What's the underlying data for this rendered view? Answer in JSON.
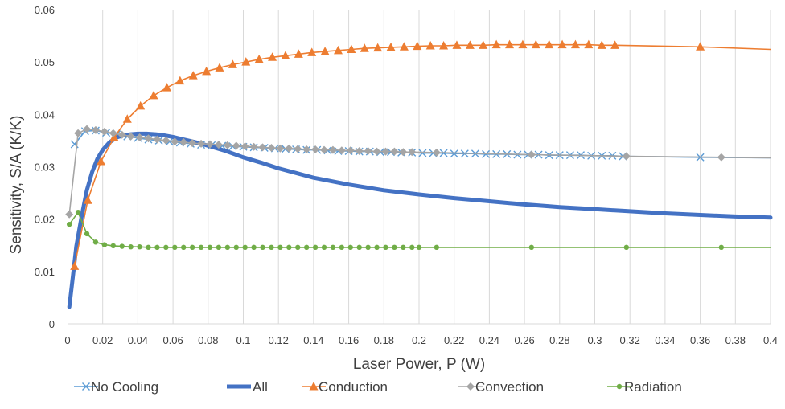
{
  "chart_data": {
    "type": "line",
    "title": "",
    "xlabel": "Laser Power, P (W)",
    "ylabel": "Sensitivity, S/A (K/K)",
    "xlim": [
      0,
      0.4
    ],
    "ylim": [
      0,
      0.06
    ],
    "x_ticks": [
      "0",
      "0.02",
      "0.04",
      "0.06",
      "0.08",
      "0.1",
      "0.12",
      "0.14",
      "0.16",
      "0.18",
      "0.2",
      "0.22",
      "0.24",
      "0.26",
      "0.28",
      "0.3",
      "0.32",
      "0.34",
      "0.36",
      "0.38",
      "0.4"
    ],
    "y_ticks": [
      "0",
      "0.01",
      "0.02",
      "0.03",
      "0.04",
      "0.05",
      "0.06"
    ],
    "vertical_gridlines": true,
    "horizontal_gridlines": false,
    "legend_position": "bottom",
    "series": [
      {
        "name": "No Cooling",
        "color": "#5B9BD5",
        "marker": "x",
        "line_width": "thin",
        "x": [
          0.004,
          0.01,
          0.016,
          0.022,
          0.028,
          0.034,
          0.04,
          0.046,
          0.052,
          0.058,
          0.064,
          0.07,
          0.076,
          0.082,
          0.088,
          0.094,
          0.1,
          0.106,
          0.112,
          0.118,
          0.124,
          0.13,
          0.136,
          0.142,
          0.148,
          0.154,
          0.16,
          0.166,
          0.172,
          0.178,
          0.184,
          0.19,
          0.196,
          0.202,
          0.208,
          0.214,
          0.22,
          0.226,
          0.232,
          0.238,
          0.244,
          0.25,
          0.256,
          0.262,
          0.268,
          0.274,
          0.28,
          0.286,
          0.292,
          0.298,
          0.304,
          0.31,
          0.316,
          0.36,
          0.4
        ],
        "y": [
          0.0343,
          0.0368,
          0.0369,
          0.0365,
          0.0362,
          0.0358,
          0.0355,
          0.0352,
          0.035,
          0.0348,
          0.0346,
          0.0344,
          0.0342,
          0.0341,
          0.034,
          0.0339,
          0.0338,
          0.0337,
          0.0336,
          0.0335,
          0.0334,
          0.0333,
          0.0332,
          0.0332,
          0.0331,
          0.033,
          0.033,
          0.0329,
          0.0329,
          0.0328,
          0.0328,
          0.0327,
          0.0327,
          0.0326,
          0.0326,
          0.0326,
          0.0325,
          0.0325,
          0.0325,
          0.0324,
          0.0324,
          0.0324,
          0.0323,
          0.0323,
          0.0323,
          0.0322,
          0.0322,
          0.0322,
          0.0322,
          0.0321,
          0.0321,
          0.0321,
          0.032,
          0.0318,
          0.0317
        ]
      },
      {
        "name": "All",
        "color": "#4472C4",
        "marker": "none",
        "line_width": "thick",
        "x": [
          0.001,
          0.003,
          0.005,
          0.008,
          0.011,
          0.014,
          0.017,
          0.02,
          0.024,
          0.028,
          0.032,
          0.036,
          0.04,
          0.045,
          0.05,
          0.055,
          0.06,
          0.065,
          0.07,
          0.075,
          0.08,
          0.09,
          0.1,
          0.11,
          0.12,
          0.13,
          0.14,
          0.16,
          0.18,
          0.2,
          0.22,
          0.24,
          0.26,
          0.28,
          0.3,
          0.32,
          0.34,
          0.36,
          0.38,
          0.4
        ],
        "y": [
          0.0032,
          0.009,
          0.0148,
          0.0205,
          0.0255,
          0.029,
          0.0315,
          0.0332,
          0.0347,
          0.0356,
          0.036,
          0.0362,
          0.0363,
          0.0363,
          0.0362,
          0.036,
          0.0357,
          0.0353,
          0.0349,
          0.0345,
          0.034,
          0.033,
          0.0318,
          0.0308,
          0.0297,
          0.0288,
          0.0279,
          0.0266,
          0.0255,
          0.0247,
          0.024,
          0.0234,
          0.0228,
          0.0223,
          0.0219,
          0.0215,
          0.0211,
          0.0208,
          0.0205,
          0.0203
        ]
      },
      {
        "name": "Conduction",
        "color": "#ED7D31",
        "marker": "triangle",
        "line_width": "thin",
        "x": [
          0.004,
          0.0115,
          0.019,
          0.0265,
          0.034,
          0.0415,
          0.049,
          0.0565,
          0.064,
          0.0715,
          0.079,
          0.0865,
          0.094,
          0.1015,
          0.109,
          0.1165,
          0.124,
          0.1315,
          0.139,
          0.1465,
          0.154,
          0.1615,
          0.169,
          0.1765,
          0.184,
          0.1915,
          0.199,
          0.2065,
          0.214,
          0.2215,
          0.229,
          0.2365,
          0.244,
          0.2515,
          0.259,
          0.2665,
          0.274,
          0.2815,
          0.289,
          0.2965,
          0.304,
          0.3115,
          0.36,
          0.4
        ],
        "y": [
          0.011,
          0.0236,
          0.031,
          0.0356,
          0.0391,
          0.0416,
          0.0436,
          0.0451,
          0.0464,
          0.0474,
          0.0482,
          0.0489,
          0.0495,
          0.05,
          0.0505,
          0.0509,
          0.0512,
          0.0515,
          0.0518,
          0.052,
          0.0522,
          0.0524,
          0.0526,
          0.0527,
          0.0528,
          0.0529,
          0.053,
          0.0531,
          0.0531,
          0.0532,
          0.0532,
          0.0532,
          0.0533,
          0.0533,
          0.0533,
          0.0533,
          0.0533,
          0.0533,
          0.0533,
          0.0533,
          0.0532,
          0.0532,
          0.0529,
          0.0524
        ]
      },
      {
        "name": "Convection",
        "color": "#A5A5A5",
        "marker": "diamond",
        "line_width": "thin",
        "x": [
          0.001,
          0.006,
          0.011,
          0.016,
          0.021,
          0.026,
          0.031,
          0.036,
          0.041,
          0.046,
          0.051,
          0.056,
          0.061,
          0.066,
          0.071,
          0.076,
          0.081,
          0.086,
          0.091,
          0.096,
          0.101,
          0.106,
          0.111,
          0.116,
          0.121,
          0.126,
          0.131,
          0.136,
          0.141,
          0.146,
          0.151,
          0.156,
          0.161,
          0.166,
          0.171,
          0.176,
          0.181,
          0.186,
          0.191,
          0.196,
          0.21,
          0.264,
          0.318,
          0.372,
          0.4
        ],
        "y": [
          0.0209,
          0.0364,
          0.0372,
          0.037,
          0.0367,
          0.0364,
          0.0361,
          0.0358,
          0.0356,
          0.0354,
          0.0352,
          0.035,
          0.0348,
          0.0347,
          0.0345,
          0.0344,
          0.0343,
          0.0342,
          0.0341,
          0.034,
          0.0339,
          0.0338,
          0.0337,
          0.0336,
          0.0335,
          0.0335,
          0.0334,
          0.0333,
          0.0333,
          0.0332,
          0.0332,
          0.0331,
          0.0331,
          0.033,
          0.033,
          0.0329,
          0.0329,
          0.0329,
          0.0328,
          0.0328,
          0.0327,
          0.0323,
          0.032,
          0.0318,
          0.0317
        ]
      },
      {
        "name": "Radiation",
        "color": "#70AD47",
        "marker": "circle",
        "line_width": "thin",
        "x": [
          0.001,
          0.006,
          0.011,
          0.016,
          0.021,
          0.026,
          0.031,
          0.036,
          0.041,
          0.046,
          0.051,
          0.056,
          0.061,
          0.066,
          0.071,
          0.076,
          0.081,
          0.086,
          0.091,
          0.096,
          0.101,
          0.106,
          0.111,
          0.116,
          0.121,
          0.126,
          0.131,
          0.136,
          0.141,
          0.146,
          0.151,
          0.156,
          0.161,
          0.166,
          0.171,
          0.176,
          0.181,
          0.186,
          0.191,
          0.196,
          0.2,
          0.21,
          0.264,
          0.318,
          0.372,
          0.4
        ],
        "y": [
          0.019,
          0.0213,
          0.0172,
          0.0156,
          0.0151,
          0.0149,
          0.0148,
          0.0147,
          0.0147,
          0.0146,
          0.0146,
          0.0146,
          0.0146,
          0.0146,
          0.0146,
          0.0146,
          0.0146,
          0.0146,
          0.0146,
          0.0146,
          0.0146,
          0.0146,
          0.0146,
          0.0146,
          0.0146,
          0.0146,
          0.0146,
          0.0146,
          0.0146,
          0.0146,
          0.0146,
          0.0146,
          0.0146,
          0.0146,
          0.0146,
          0.0146,
          0.0146,
          0.0146,
          0.0146,
          0.0146,
          0.0146,
          0.0146,
          0.0146,
          0.0146,
          0.0146,
          0.0146
        ]
      }
    ]
  }
}
